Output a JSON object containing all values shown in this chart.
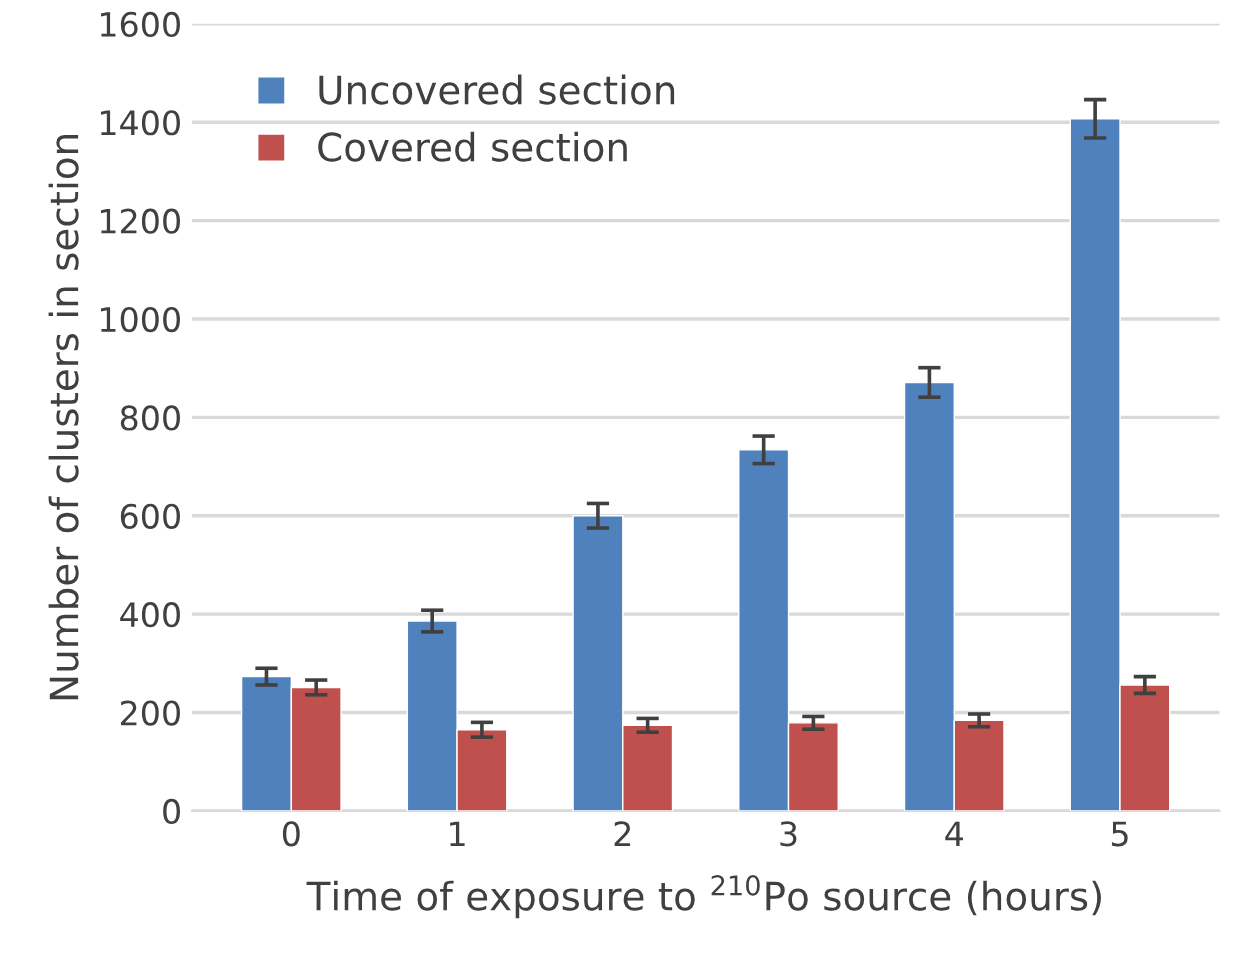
{
  "chart_data": {
    "type": "bar",
    "categories": [
      "0",
      "1",
      "2",
      "3",
      "4",
      "5"
    ],
    "series": [
      {
        "name": "Uncovered section",
        "color": "#4f81bd",
        "values": [
          273,
          386,
          600,
          734,
          871,
          1407
        ],
        "errors": [
          17,
          22,
          25,
          28,
          30,
          39
        ]
      },
      {
        "name": "Covered section",
        "color": "#c0504d",
        "values": [
          251,
          165,
          174,
          179,
          184,
          256
        ],
        "errors": [
          15,
          15,
          14,
          13,
          13,
          17
        ]
      }
    ],
    "xlabel": "Time of exposure to $^{210}$Po source (hours)",
    "ylabel": "Number of clusters in section",
    "ylim": [
      0,
      1600
    ],
    "yticks": [
      0,
      200,
      400,
      600,
      800,
      1000,
      1200,
      1400,
      1600
    ],
    "grid": "y",
    "legend": "top left"
  }
}
